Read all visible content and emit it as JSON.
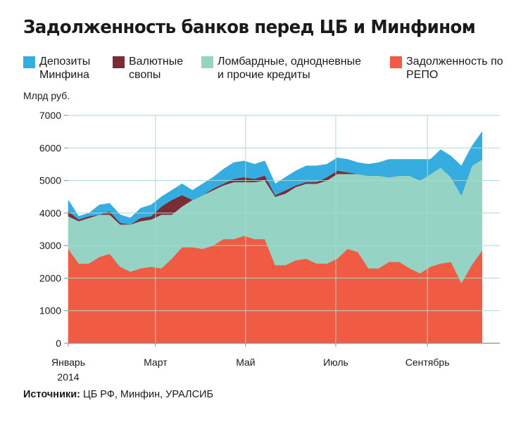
{
  "title": "Задолженность банков перед ЦБ и Минфином",
  "unit_label": "Млрд руб.",
  "source": {
    "label": "Источники:",
    "text": " ЦБ РФ, Минфин, УРАЛСИБ"
  },
  "colors": {
    "repo": "#f05b43",
    "lombard": "#95d4c5",
    "swaps": "#7b2d35",
    "deposits": "#36ade1",
    "gridline": "#a9dacf",
    "axis": "#8a8a8a"
  },
  "chart_data": {
    "type": "area",
    "stacked": true,
    "legend_position": "top",
    "grid": true,
    "ylabel": "Млрд руб.",
    "ylim": [
      0,
      7000
    ],
    "y_ticks": [
      0,
      1000,
      2000,
      3000,
      4000,
      5000,
      6000,
      7000
    ],
    "x_labels": [
      {
        "label": "Январь\n2014",
        "x": "2014-01-01"
      },
      {
        "label": "Март",
        "x": "2014-03-01"
      },
      {
        "label": "Май",
        "x": "2014-05-01"
      },
      {
        "label": "Июль",
        "x": "2014-07-01"
      },
      {
        "label": "Сентябрь",
        "x": "2014-09-01"
      }
    ],
    "x": [
      "2014-01-01",
      "2014-01-08",
      "2014-01-15",
      "2014-01-22",
      "2014-01-29",
      "2014-02-05",
      "2014-02-12",
      "2014-02-19",
      "2014-02-26",
      "2014-03-05",
      "2014-03-12",
      "2014-03-19",
      "2014-03-26",
      "2014-04-02",
      "2014-04-09",
      "2014-04-16",
      "2014-04-23",
      "2014-04-30",
      "2014-05-07",
      "2014-05-14",
      "2014-05-21",
      "2014-05-28",
      "2014-06-04",
      "2014-06-11",
      "2014-06-18",
      "2014-06-25",
      "2014-07-02",
      "2014-07-09",
      "2014-07-16",
      "2014-07-23",
      "2014-07-30",
      "2014-08-06",
      "2014-08-13",
      "2014-08-20",
      "2014-08-27",
      "2014-09-03",
      "2014-09-10",
      "2014-09-17",
      "2014-09-24",
      "2014-10-01",
      "2014-10-08"
    ],
    "series": [
      {
        "name": "Задолженность по РЕПО",
        "color": "#f05b43",
        "values": [
          2900,
          2450,
          2450,
          2650,
          2750,
          2350,
          2200,
          2300,
          2350,
          2300,
          2600,
          2950,
          2950,
          2900,
          3000,
          3200,
          3200,
          3300,
          3200,
          3200,
          2400,
          2400,
          2550,
          2600,
          2450,
          2450,
          2600,
          2900,
          2800,
          2300,
          2300,
          2500,
          2500,
          2300,
          2150,
          2350,
          2450,
          2500,
          1850,
          2400,
          2850
        ]
      },
      {
        "name": "Ломбардные, однодневные\nи прочие кредиты",
        "color": "#95d4c5",
        "values": [
          1000,
          1300,
          1400,
          1300,
          1200,
          1300,
          1450,
          1450,
          1450,
          1650,
          1350,
          1250,
          1450,
          1650,
          1700,
          1650,
          1750,
          1650,
          1750,
          1800,
          2100,
          2200,
          2250,
          2300,
          2450,
          2550,
          2600,
          2300,
          2400,
          2850,
          2850,
          2600,
          2650,
          2850,
          2850,
          2850,
          2950,
          2600,
          2700,
          3050,
          2800
        ]
      },
      {
        "name": "Валютные\nсвопы",
        "color": "#7b2d35",
        "values": [
          150,
          50,
          50,
          0,
          100,
          50,
          0,
          100,
          100,
          250,
          450,
          350,
          0,
          0,
          50,
          50,
          100,
          150,
          100,
          150,
          50,
          100,
          50,
          50,
          50,
          100,
          100,
          50,
          0,
          0,
          0,
          0,
          0,
          0,
          0,
          0,
          0,
          0,
          0,
          0,
          0
        ]
      },
      {
        "name": "Депозиты\nМинфина",
        "color": "#36ade1",
        "values": [
          350,
          100,
          100,
          300,
          250,
          250,
          200,
          300,
          350,
          300,
          300,
          350,
          300,
          350,
          350,
          450,
          500,
          500,
          450,
          450,
          350,
          400,
          450,
          500,
          500,
          400,
          400,
          400,
          350,
          350,
          400,
          550,
          500,
          500,
          650,
          450,
          550,
          650,
          900,
          600,
          850
        ]
      }
    ]
  }
}
